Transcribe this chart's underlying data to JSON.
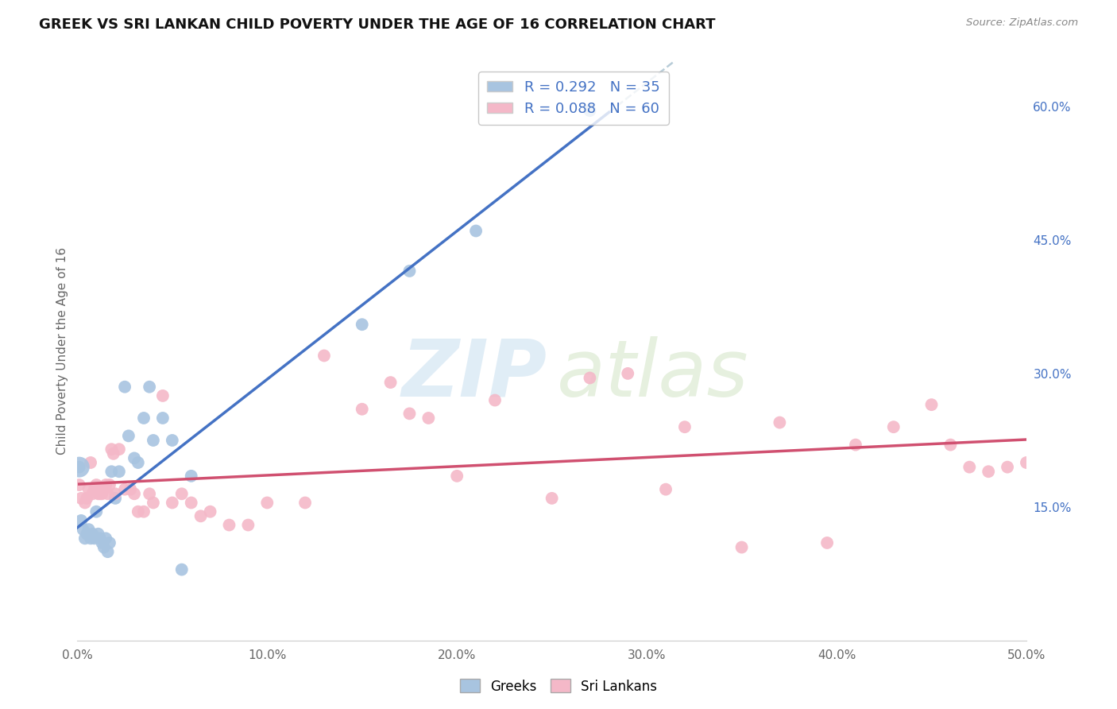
{
  "title": "GREEK VS SRI LANKAN CHILD POVERTY UNDER THE AGE OF 16 CORRELATION CHART",
  "source": "Source: ZipAtlas.com",
  "ylabel": "Child Poverty Under the Age of 16",
  "xlim": [
    0.0,
    0.5
  ],
  "ylim": [
    0.0,
    0.65
  ],
  "xticks": [
    0.0,
    0.1,
    0.2,
    0.3,
    0.4,
    0.5
  ],
  "xticklabels": [
    "0.0%",
    "10.0%",
    "20.0%",
    "30.0%",
    "40.0%",
    "50.0%"
  ],
  "yticks_right": [
    0.15,
    0.3,
    0.45,
    0.6
  ],
  "yticklabels_right": [
    "15.0%",
    "30.0%",
    "45.0%",
    "60.0%"
  ],
  "greek_color": "#a8c4e0",
  "sri_lankan_color": "#f4b8c8",
  "greek_line_color": "#4472c4",
  "sri_lankan_line_color": "#d05070",
  "trend_line_color": "#b8ccd8",
  "legend_R_greek": "R = 0.292",
  "legend_N_greek": "N = 35",
  "legend_R_sri": "R = 0.088",
  "legend_N_sri": "N = 60",
  "greeks_x": [
    0.001,
    0.002,
    0.003,
    0.004,
    0.005,
    0.006,
    0.007,
    0.008,
    0.009,
    0.01,
    0.011,
    0.012,
    0.013,
    0.014,
    0.015,
    0.016,
    0.017,
    0.018,
    0.02,
    0.022,
    0.025,
    0.027,
    0.03,
    0.032,
    0.035,
    0.038,
    0.04,
    0.045,
    0.05,
    0.055,
    0.06,
    0.15,
    0.175,
    0.21,
    0.27
  ],
  "greeks_y": [
    0.195,
    0.135,
    0.125,
    0.115,
    0.12,
    0.125,
    0.115,
    0.12,
    0.115,
    0.145,
    0.12,
    0.115,
    0.11,
    0.105,
    0.115,
    0.1,
    0.11,
    0.19,
    0.16,
    0.19,
    0.285,
    0.23,
    0.205,
    0.2,
    0.25,
    0.285,
    0.225,
    0.25,
    0.225,
    0.08,
    0.185,
    0.355,
    0.415,
    0.46,
    0.595
  ],
  "sri_lankans_x": [
    0.001,
    0.002,
    0.004,
    0.005,
    0.006,
    0.007,
    0.008,
    0.009,
    0.01,
    0.011,
    0.012,
    0.013,
    0.014,
    0.015,
    0.016,
    0.017,
    0.018,
    0.019,
    0.02,
    0.022,
    0.025,
    0.028,
    0.03,
    0.032,
    0.035,
    0.038,
    0.04,
    0.045,
    0.05,
    0.055,
    0.06,
    0.065,
    0.07,
    0.08,
    0.09,
    0.1,
    0.12,
    0.13,
    0.15,
    0.165,
    0.175,
    0.185,
    0.2,
    0.22,
    0.25,
    0.27,
    0.29,
    0.31,
    0.32,
    0.35,
    0.37,
    0.395,
    0.41,
    0.43,
    0.45,
    0.46,
    0.47,
    0.48,
    0.49,
    0.5
  ],
  "sri_lankans_y": [
    0.175,
    0.16,
    0.155,
    0.16,
    0.17,
    0.2,
    0.165,
    0.17,
    0.175,
    0.165,
    0.165,
    0.165,
    0.17,
    0.175,
    0.165,
    0.175,
    0.215,
    0.21,
    0.165,
    0.215,
    0.17,
    0.17,
    0.165,
    0.145,
    0.145,
    0.165,
    0.155,
    0.275,
    0.155,
    0.165,
    0.155,
    0.14,
    0.145,
    0.13,
    0.13,
    0.155,
    0.155,
    0.32,
    0.26,
    0.29,
    0.255,
    0.25,
    0.185,
    0.27,
    0.16,
    0.295,
    0.3,
    0.17,
    0.24,
    0.105,
    0.245,
    0.11,
    0.22,
    0.24,
    0.265,
    0.22,
    0.195,
    0.19,
    0.195,
    0.2
  ]
}
